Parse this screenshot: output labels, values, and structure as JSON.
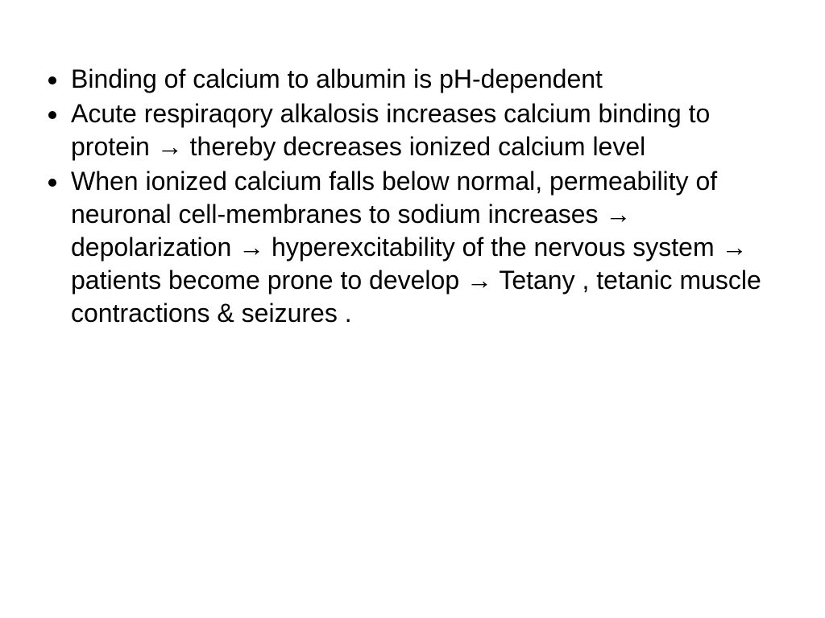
{
  "slide": {
    "background_color": "#ffffff",
    "text_color": "#000000",
    "font_family": "Comic Sans MS",
    "font_size_pt": 32,
    "line_height": 1.28,
    "bullets": [
      {
        "segments": [
          {
            "type": "text",
            "value": "Binding of calcium to albumin is pH-dependent"
          }
        ]
      },
      {
        "segments": [
          {
            "type": "text",
            "value": "Acute respiraqory alkalosis increases calcium binding to protein "
          },
          {
            "type": "arrow"
          },
          {
            "type": "text",
            "value": " thereby decreases ionized calcium level"
          }
        ]
      },
      {
        "segments": [
          {
            "type": "text",
            "value": "When ionized calcium falls below normal, permeability of neuronal cell-membranes to sodium increases "
          },
          {
            "type": "arrow"
          },
          {
            "type": "text",
            "value": " depolarization "
          },
          {
            "type": "arrow"
          },
          {
            "type": "text",
            "value": " hyperexcitability of the nervous system "
          },
          {
            "type": "arrow"
          },
          {
            "type": "text",
            "value": " patients become prone to develop "
          },
          {
            "type": "arrow"
          },
          {
            "type": "text",
            "value": " Tetany , tetanic muscle contractions & seizures ."
          }
        ]
      }
    ],
    "arrow_glyph": "→"
  }
}
